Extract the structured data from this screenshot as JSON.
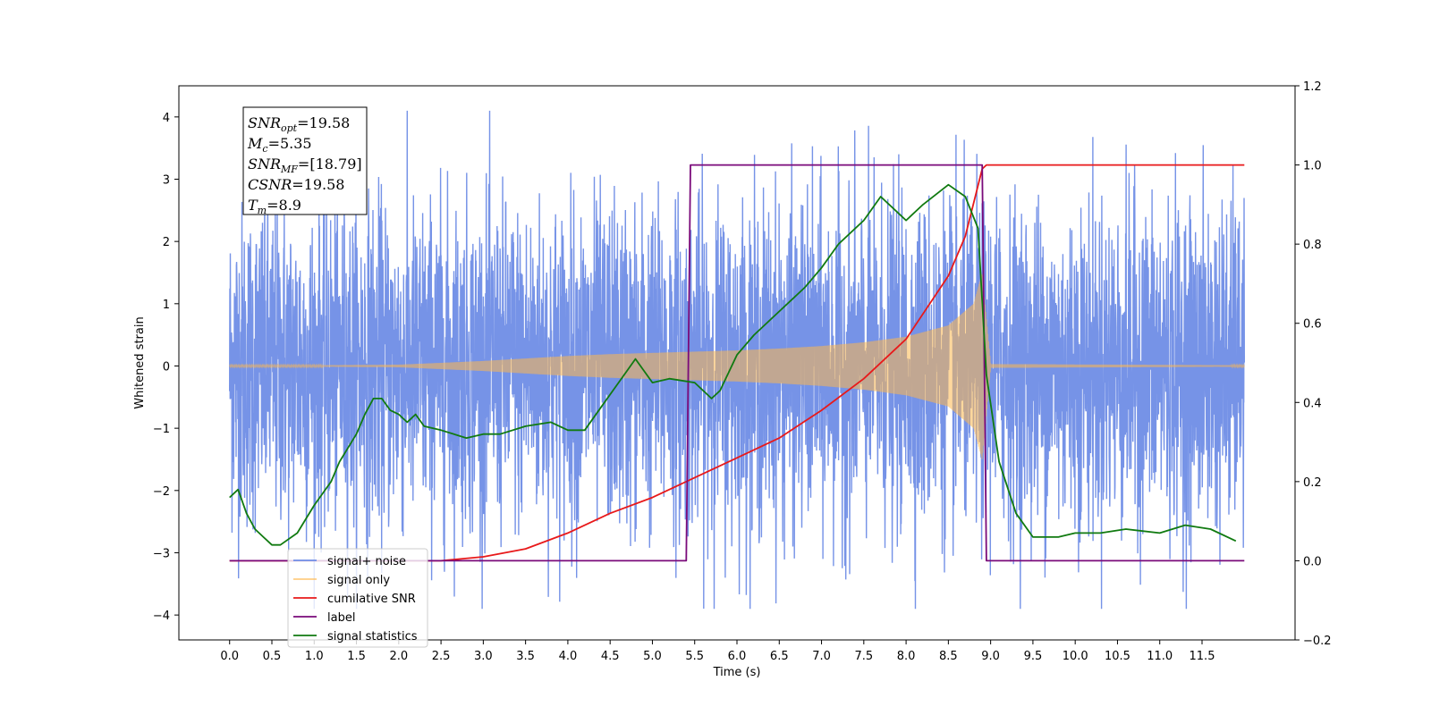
{
  "chart_data": {
    "type": "line",
    "xlabel": "Time (s)",
    "ylabel": "Whitened strain",
    "xlim": [
      -0.6,
      12.6
    ],
    "ylim": [
      -4.4,
      4.5
    ],
    "y2lim": [
      -0.2,
      1.2
    ],
    "x_ticks": [
      "0.0",
      "0.5",
      "1.0",
      "1.5",
      "2.0",
      "2.5",
      "3.0",
      "3.5",
      "4.0",
      "4.5",
      "5.0",
      "5.5",
      "6.0",
      "6.5",
      "7.0",
      "7.5",
      "8.0",
      "8.5",
      "9.0",
      "9.5",
      "10.0",
      "10.5",
      "11.0",
      "11.5"
    ],
    "y_ticks": [
      "−4",
      "−3",
      "−2",
      "−1",
      "0",
      "1",
      "2",
      "3",
      "4"
    ],
    "y2_ticks": [
      "−0.2",
      "0.0",
      "0.2",
      "0.4",
      "0.6",
      "0.8",
      "1.0",
      "1.2"
    ],
    "legend_position": "lower-left",
    "annotation": {
      "lines": [
        {
          "base": "SNR",
          "sub": "opt",
          "value": "=19.58"
        },
        {
          "base": "M",
          "sub": "c",
          "value": "=5.35"
        },
        {
          "base": "SNR",
          "sub": "MF",
          "value": "=[18.79]"
        },
        {
          "base": "CSNR",
          "sub": "",
          "value": "=19.58"
        },
        {
          "base": "T",
          "sub": "m",
          "value": "=8.9"
        }
      ]
    },
    "series": [
      {
        "name": "signal+ noise",
        "color": "#6f8de6",
        "axis": "left",
        "style": "noise",
        "amplitude": 1.3,
        "x_range": [
          0,
          12
        ]
      },
      {
        "name": "signal only",
        "color": "#ffb84d",
        "axis": "left",
        "style": "chirp",
        "envelope_x": [
          0,
          1,
          2,
          2.5,
          3,
          3.5,
          4,
          4.5,
          5,
          5.5,
          6,
          6.5,
          7,
          7.5,
          8,
          8.5,
          8.8,
          8.9,
          9.0,
          12
        ],
        "envelope_y": [
          0.01,
          0.01,
          0.02,
          0.05,
          0.08,
          0.12,
          0.16,
          0.19,
          0.21,
          0.23,
          0.25,
          0.28,
          0.32,
          0.38,
          0.47,
          0.65,
          1.0,
          1.5,
          0.03,
          0.01
        ]
      },
      {
        "name": "cumilative SNR",
        "color": "#e8191a",
        "axis": "right",
        "x": [
          0,
          2.5,
          3.0,
          3.5,
          4.0,
          4.5,
          5.0,
          5.5,
          6.0,
          6.5,
          7.0,
          7.5,
          8.0,
          8.5,
          8.7,
          8.9,
          8.95,
          12.0
        ],
        "y": [
          0.0,
          0.0,
          0.01,
          0.03,
          0.07,
          0.12,
          0.16,
          0.21,
          0.26,
          0.31,
          0.38,
          0.46,
          0.56,
          0.72,
          0.82,
          0.99,
          1.0,
          1.0
        ]
      },
      {
        "name": "label",
        "color": "#7a0a7a",
        "axis": "right",
        "x": [
          0,
          5.4,
          5.45,
          8.9,
          8.95,
          12.0
        ],
        "y": [
          0,
          0,
          1,
          1,
          0,
          0
        ]
      },
      {
        "name": "signal statistics",
        "color": "#107a10",
        "axis": "right",
        "x": [
          0,
          0.1,
          0.2,
          0.3,
          0.4,
          0.5,
          0.6,
          0.8,
          1.0,
          1.2,
          1.3,
          1.5,
          1.6,
          1.7,
          1.8,
          1.9,
          2.0,
          2.1,
          2.2,
          2.3,
          2.5,
          2.8,
          3.0,
          3.2,
          3.5,
          3.8,
          4.0,
          4.2,
          4.4,
          4.5,
          4.7,
          4.8,
          5.0,
          5.2,
          5.5,
          5.7,
          5.8,
          6.0,
          6.2,
          6.5,
          6.8,
          7.0,
          7.2,
          7.5,
          7.7,
          7.9,
          8.0,
          8.2,
          8.5,
          8.7,
          8.85,
          8.95,
          9.1,
          9.3,
          9.5,
          9.8,
          10.0,
          10.3,
          10.6,
          11.0,
          11.3,
          11.6,
          11.9
        ],
        "y": [
          0.16,
          0.18,
          0.12,
          0.08,
          0.06,
          0.04,
          0.04,
          0.07,
          0.14,
          0.2,
          0.25,
          0.32,
          0.37,
          0.41,
          0.41,
          0.38,
          0.37,
          0.35,
          0.37,
          0.34,
          0.33,
          0.31,
          0.32,
          0.32,
          0.34,
          0.35,
          0.33,
          0.33,
          0.39,
          0.42,
          0.48,
          0.51,
          0.45,
          0.46,
          0.45,
          0.41,
          0.43,
          0.52,
          0.57,
          0.63,
          0.69,
          0.74,
          0.8,
          0.86,
          0.92,
          0.88,
          0.86,
          0.9,
          0.95,
          0.92,
          0.84,
          0.47,
          0.25,
          0.12,
          0.06,
          0.06,
          0.07,
          0.07,
          0.08,
          0.07,
          0.09,
          0.08,
          0.05
        ]
      }
    ]
  }
}
